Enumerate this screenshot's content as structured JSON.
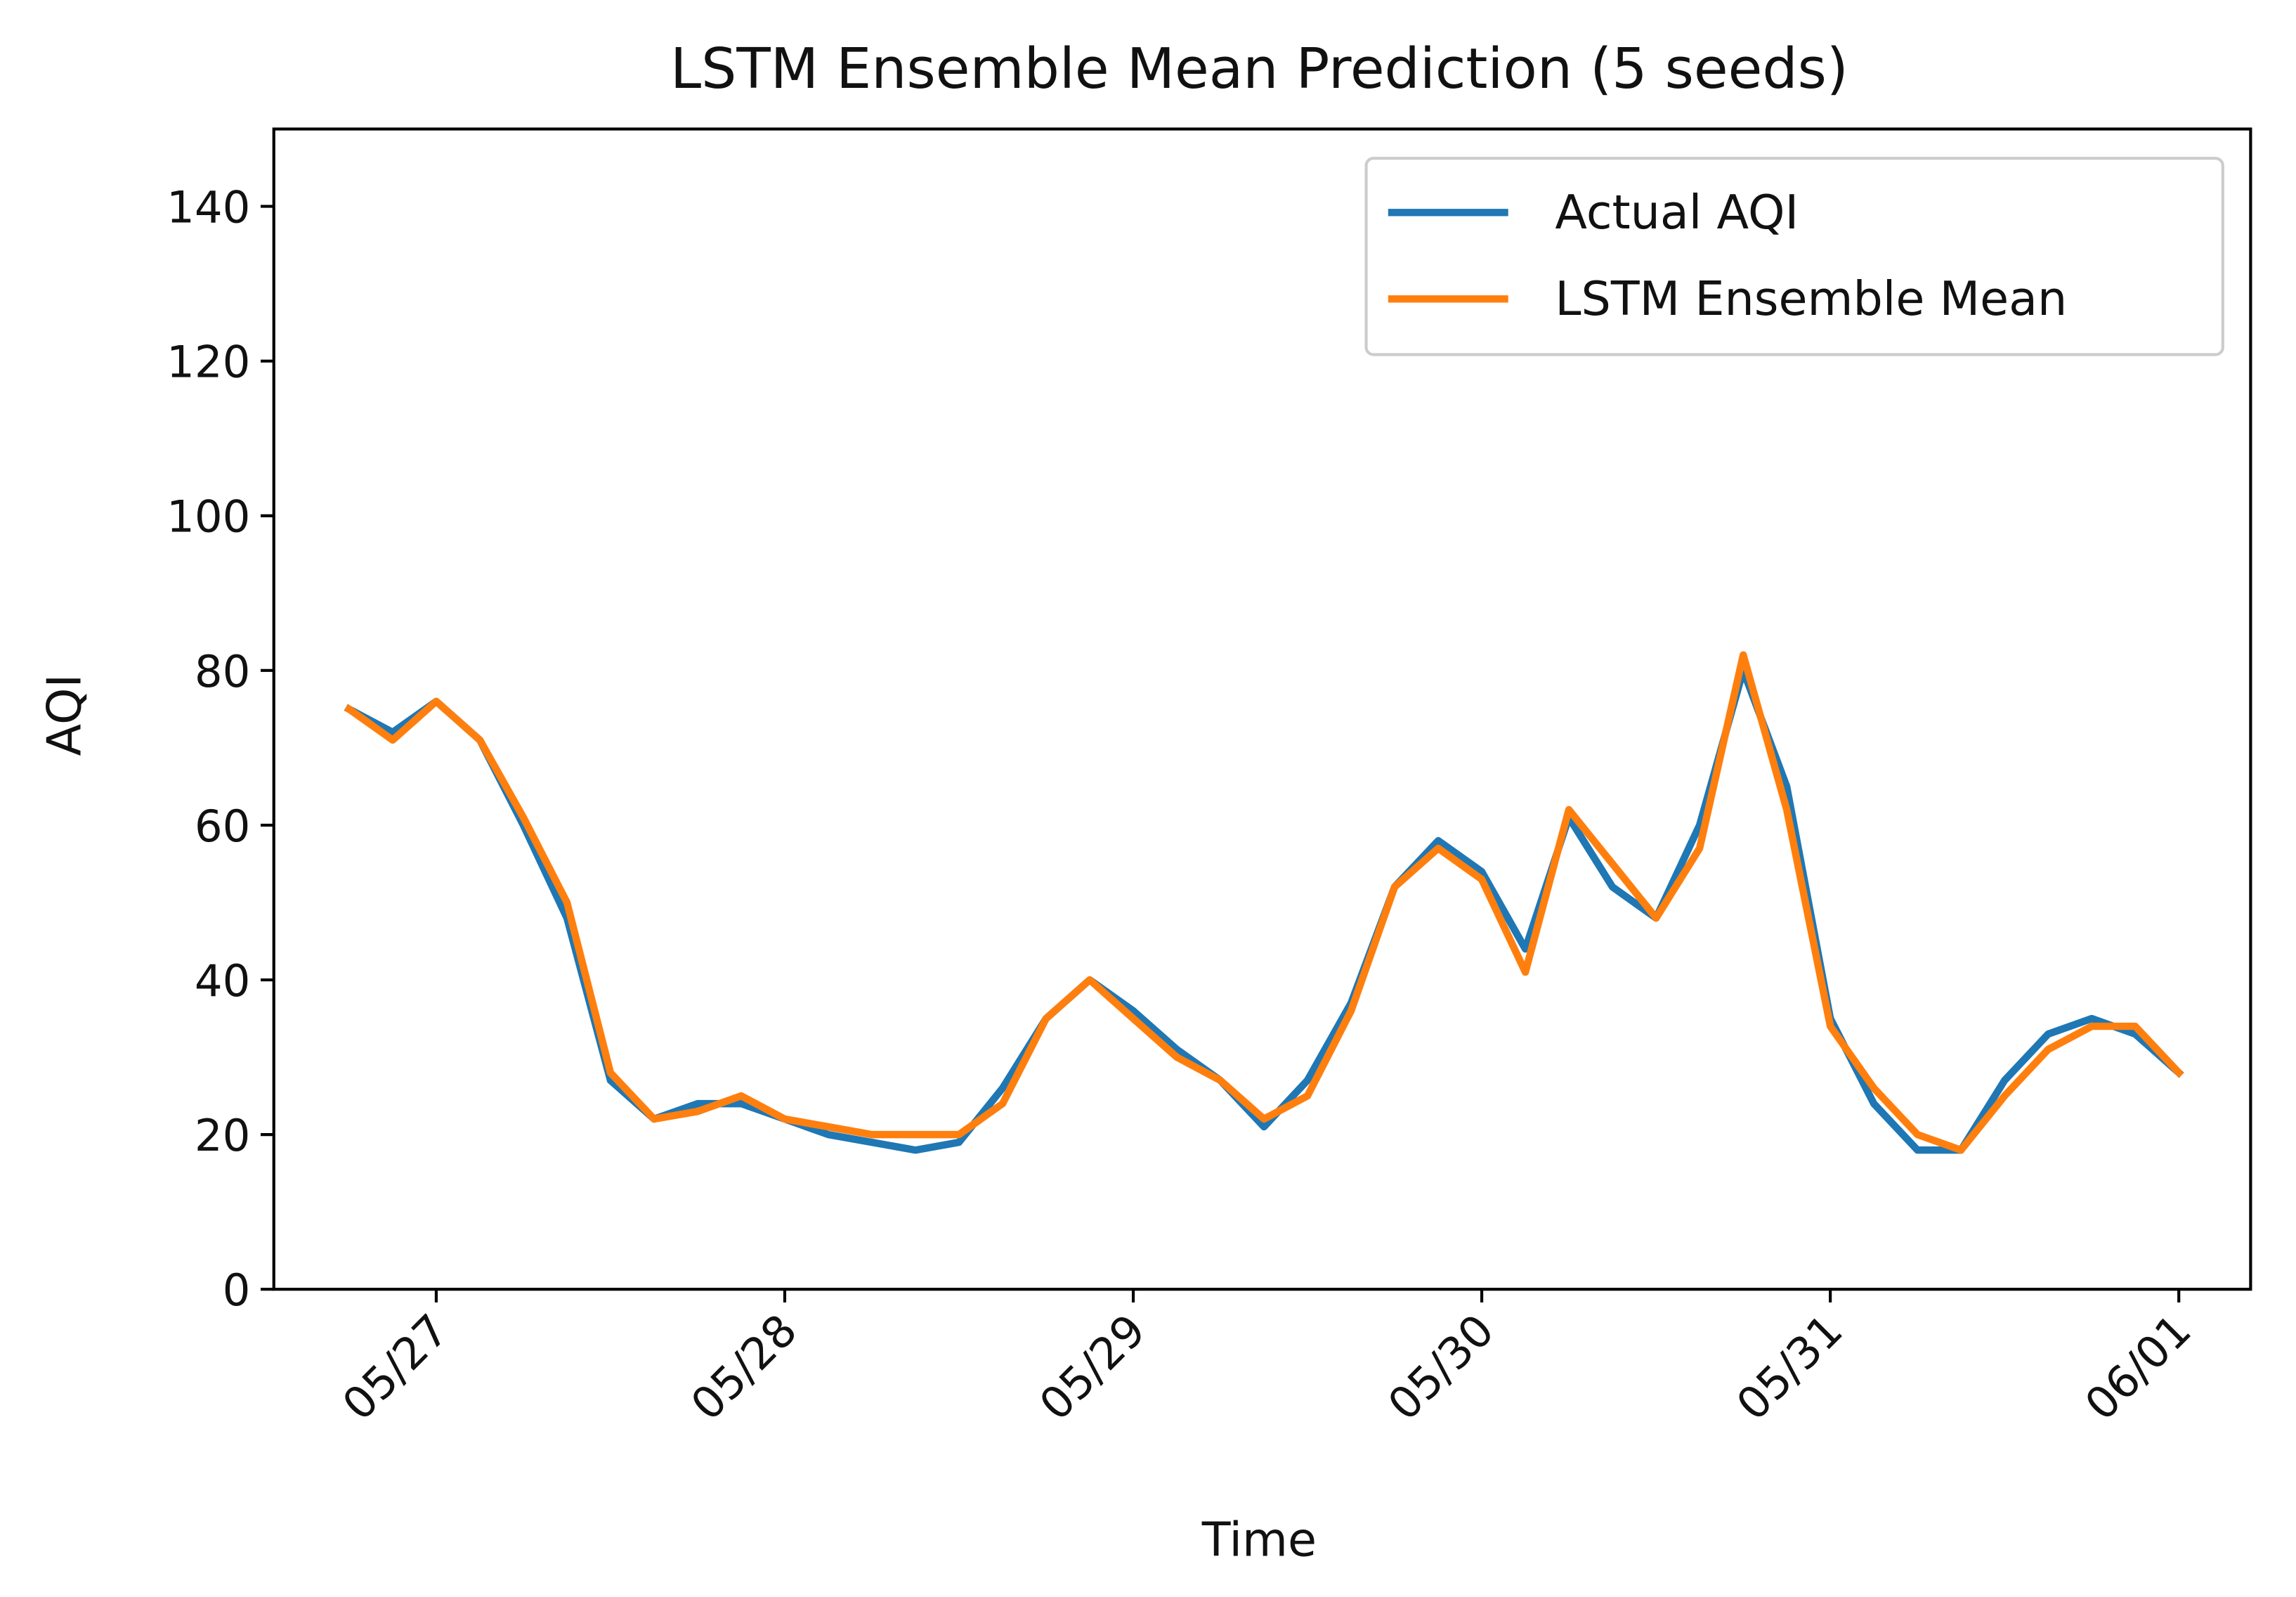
{
  "chart_data": {
    "type": "line",
    "title": "LSTM Ensemble Mean Prediction (5 seeds)",
    "x_label": "Time",
    "y_label": "AQI",
    "x": [
      -0.25,
      -0.125,
      0,
      0.125,
      0.25,
      0.375,
      0.5,
      0.625,
      0.75,
      0.875,
      1,
      1.125,
      1.25,
      1.375,
      1.5,
      1.625,
      1.75,
      1.875,
      2,
      2.125,
      2.25,
      2.375,
      2.5,
      2.625,
      2.75,
      2.875,
      3,
      3.125,
      3.25,
      3.375,
      3.5,
      3.625,
      3.75,
      3.875,
      4,
      4.125,
      4.25,
      4.375,
      4.5,
      4.625,
      4.75,
      4.875,
      5
    ],
    "series": [
      {
        "name": "Actual AQI",
        "color": "#1f77b4",
        "values": [
          75,
          72,
          76,
          71,
          60,
          48,
          27,
          22,
          24,
          24,
          22,
          20,
          19,
          18,
          19,
          26,
          35,
          40,
          36,
          31,
          27,
          21,
          27,
          37,
          52,
          58,
          54,
          44,
          61,
          52,
          48,
          60,
          80,
          65,
          35,
          24,
          18,
          18,
          27,
          33,
          35,
          33,
          28
        ]
      },
      {
        "name": "LSTM Ensemble Mean",
        "color": "#ff7f0e",
        "values": [
          75,
          71,
          76,
          71,
          61,
          50,
          28,
          22,
          23,
          25,
          22,
          21,
          20,
          20,
          20,
          24,
          35,
          40,
          35,
          30,
          27,
          22,
          25,
          36,
          52,
          57,
          53,
          41,
          62,
          55,
          48,
          57,
          82,
          62,
          34,
          26,
          20,
          18,
          25,
          31,
          34,
          34,
          28
        ]
      }
    ],
    "xlim": [
      -0.466,
      5.206
    ],
    "xticks": [
      {
        "value": 0,
        "label": "05/27"
      },
      {
        "value": 1,
        "label": "05/28"
      },
      {
        "value": 2,
        "label": "05/29"
      },
      {
        "value": 3,
        "label": "05/30"
      },
      {
        "value": 4,
        "label": "05/31"
      },
      {
        "value": 5,
        "label": "06/01"
      }
    ],
    "ylim": [
      0,
      150
    ],
    "yticks": [
      0,
      20,
      40,
      60,
      80,
      100,
      120,
      140
    ],
    "grid": false,
    "legend": "upper-right"
  }
}
